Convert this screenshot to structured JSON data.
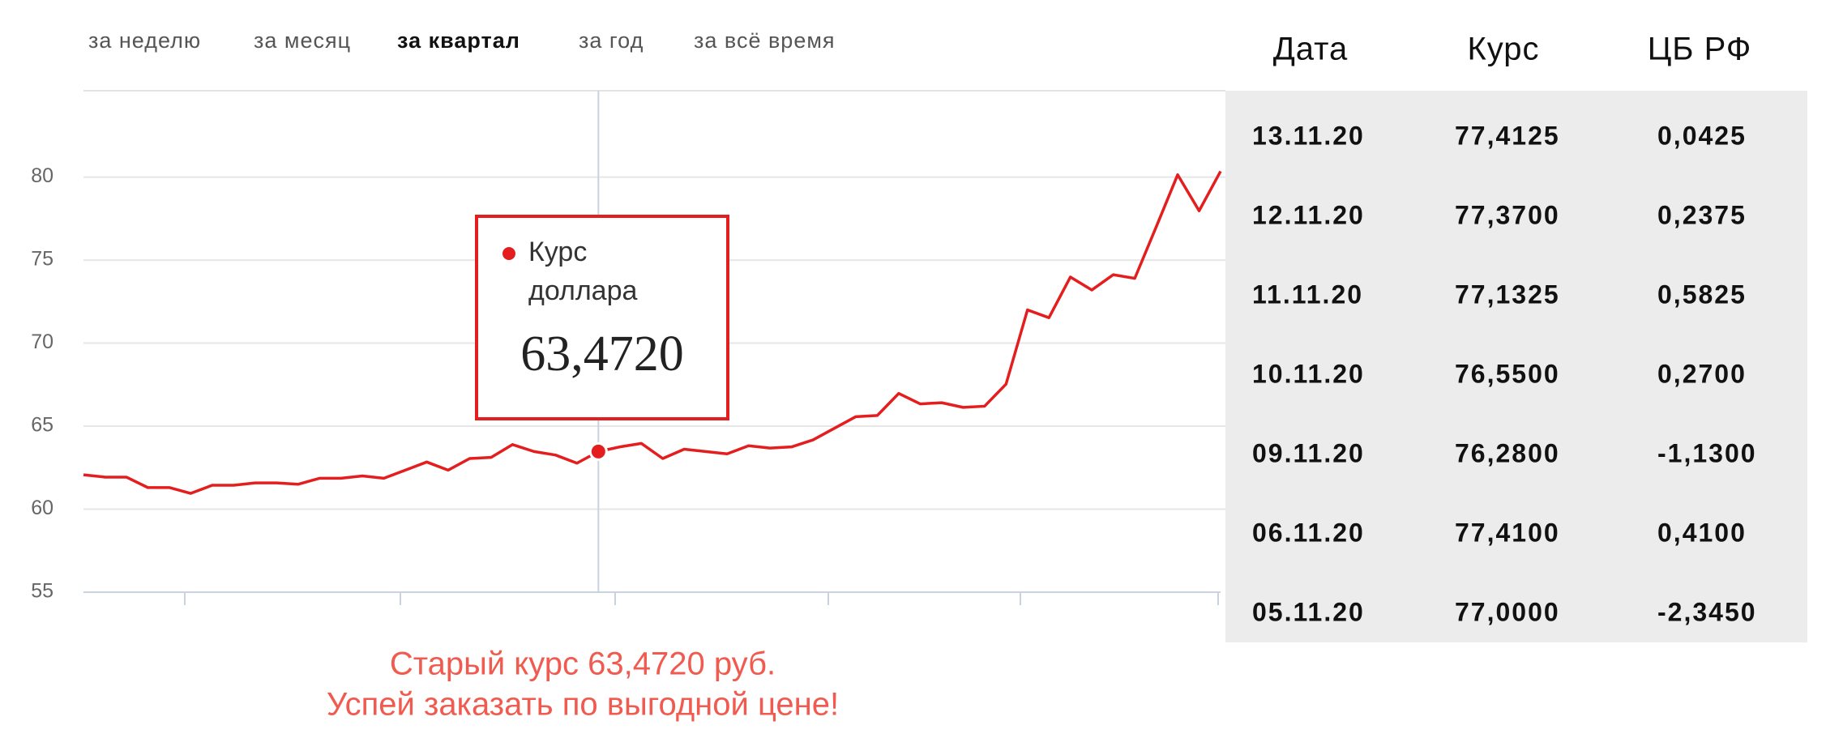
{
  "tabs": [
    {
      "label": "за неделю"
    },
    {
      "label": "за месяц"
    },
    {
      "label": "за квартал",
      "active": true
    },
    {
      "label": "за год"
    },
    {
      "label": "за всё время"
    }
  ],
  "chart_data": {
    "type": "line",
    "ylim": [
      55,
      85.2
    ],
    "yticks": [
      55,
      60,
      65,
      70,
      75,
      80
    ],
    "grid": true,
    "series": [
      {
        "name": "Курс доллара",
        "color": "#e41e1e",
        "values": [
          62.07,
          61.93,
          61.93,
          61.3,
          61.3,
          60.95,
          61.44,
          61.44,
          61.58,
          61.58,
          61.5,
          61.86,
          61.86,
          62.0,
          61.86,
          62.35,
          62.84,
          62.35,
          63.05,
          63.12,
          63.89,
          63.47,
          63.26,
          62.77,
          63.472,
          63.75,
          63.96,
          63.05,
          63.61,
          63.47,
          63.33,
          63.82,
          63.68,
          63.75,
          64.17,
          64.87,
          65.57,
          65.64,
          66.97,
          66.34,
          66.41,
          66.13,
          66.2,
          67.53,
          72.0,
          71.53,
          73.98,
          73.2,
          74.12,
          73.9,
          77.0,
          80.14,
          77.97,
          80.35
        ]
      }
    ],
    "tooltip": {
      "label": "Курс доллара",
      "value": "63,4720"
    }
  },
  "table": {
    "headers": [
      "Дата",
      "Курс",
      "ЦБ РФ"
    ],
    "up_color": "#3ec21c",
    "down_color": "#e8211a",
    "rows": [
      [
        "13.11.20",
        "77,4125",
        "0,0425"
      ],
      [
        "12.11.20",
        "77,3700",
        "0,2375"
      ],
      [
        "11.11.20",
        "77,1325",
        "0,5825"
      ],
      [
        "10.11.20",
        "76,5500",
        "0,2700"
      ],
      [
        "09.11.20",
        "76,2800",
        "-1,1300"
      ],
      [
        "06.11.20",
        "77,4100",
        "0,4100"
      ],
      [
        "05.11.20",
        "77,0000",
        "-2,3450"
      ]
    ]
  },
  "promo": [
    "Старый курс 63,4720 руб.",
    "Успей заказать по выгодной цене!"
  ]
}
